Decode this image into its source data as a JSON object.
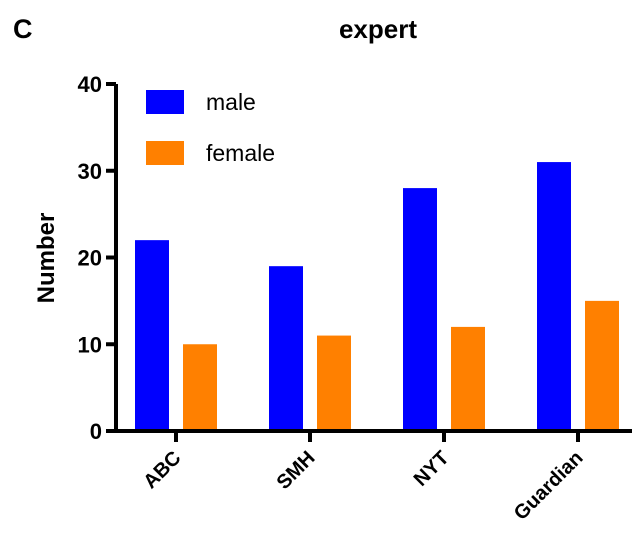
{
  "panel_label": "C",
  "chart_data": {
    "type": "bar",
    "title": "expert",
    "xlabel": "",
    "ylabel": "Number",
    "categories": [
      "ABC",
      "SMH",
      "NYT",
      "Guardian"
    ],
    "series": [
      {
        "name": "male",
        "values": [
          22,
          19,
          28,
          31
        ],
        "color": "#0000FF"
      },
      {
        "name": "female",
        "values": [
          10,
          11,
          12,
          15
        ],
        "color": "#FF8000"
      }
    ],
    "ylim": [
      0,
      40
    ],
    "yticks": [
      "0",
      "10",
      "20",
      "30",
      "40"
    ],
    "grid": false,
    "legend_position": "top-left"
  }
}
